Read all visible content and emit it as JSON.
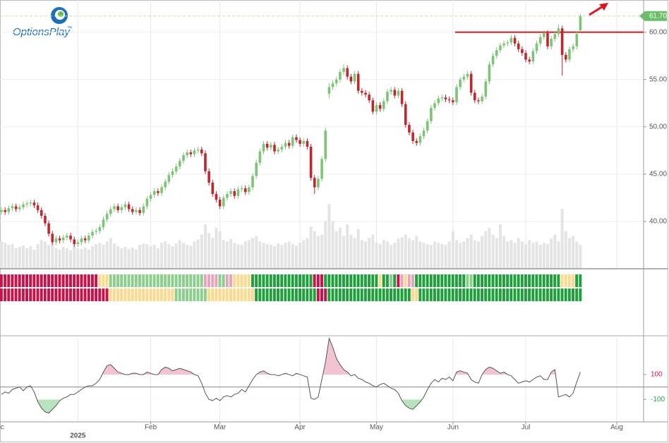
{
  "logo": "OptionsPlay",
  "trademark": "™",
  "chart_data": {
    "type": "candlestick",
    "up_color": "#7cc576",
    "down_color": "#c0272d",
    "volume_color": "#e4e4e4",
    "xlim": [
      -0.39,
      176.36
    ],
    "ylim": [
      35.0,
      63.4
    ],
    "yticks": [
      {
        "value": 40,
        "label": "40.00"
      },
      {
        "value": 45,
        "label": "45.00"
      },
      {
        "value": 50,
        "label": "50.00"
      },
      {
        "value": 55,
        "label": "55.00"
      },
      {
        "value": 60,
        "label": "60.00"
      }
    ],
    "xticks": [
      {
        "value": -1,
        "label": "Dec"
      },
      {
        "value": 41,
        "label": "Feb"
      },
      {
        "value": 60,
        "label": "Mar"
      },
      {
        "value": 82,
        "label": "Apr"
      },
      {
        "value": 103,
        "label": "May"
      },
      {
        "value": 124,
        "label": "Jun"
      },
      {
        "value": 144,
        "label": "Jul"
      },
      {
        "value": 169,
        "label": "Aug"
      }
    ],
    "year_tick": {
      "value": 21,
      "label": "2025"
    },
    "grid": true,
    "last_price": {
      "value": 61.7,
      "label": "61.70",
      "color": "#6abf69"
    },
    "resistance_line": {
      "y": 60,
      "x_start": 124.6,
      "color": "#d9161b"
    },
    "ohlc": [
      [
        41.0,
        41.5,
        40.7,
        41.2
      ],
      [
        41.2,
        41.5,
        40.7,
        41.0
      ],
      [
        41.0,
        41.7,
        40.7,
        41.4
      ],
      [
        41.4,
        41.9,
        41.1,
        41.6
      ],
      [
        41.6,
        41.9,
        41.0,
        41.3
      ],
      [
        41.3,
        41.8,
        41.0,
        41.5
      ],
      [
        41.5,
        42.1,
        41.2,
        41.8
      ],
      [
        41.8,
        42.2,
        41.5,
        41.9
      ],
      [
        41.9,
        42.3,
        41.6,
        42.0
      ],
      [
        42.0,
        42.3,
        41.4,
        41.7
      ],
      [
        41.7,
        42.0,
        40.9,
        41.2
      ],
      [
        41.2,
        41.5,
        40.3,
        40.6
      ],
      [
        40.6,
        40.9,
        39.5,
        39.8
      ],
      [
        39.8,
        40.1,
        38.4,
        38.7
      ],
      [
        38.7,
        39.0,
        37.5,
        37.8
      ],
      [
        37.8,
        38.5,
        37.5,
        38.2
      ],
      [
        38.2,
        38.5,
        37.7,
        38.0
      ],
      [
        38.0,
        38.6,
        37.7,
        38.3
      ],
      [
        38.3,
        38.8,
        38.0,
        38.5
      ],
      [
        38.5,
        38.8,
        37.8,
        38.1
      ],
      [
        38.1,
        38.4,
        37.3,
        37.6
      ],
      [
        37.6,
        38.1,
        37.3,
        37.8
      ],
      [
        37.8,
        38.5,
        37.5,
        38.2
      ],
      [
        38.2,
        38.5,
        37.7,
        38.0
      ],
      [
        38.0,
        38.8,
        37.7,
        38.5
      ],
      [
        38.5,
        39.2,
        38.2,
        38.9
      ],
      [
        38.9,
        39.3,
        38.6,
        39.0
      ],
      [
        39.0,
        39.7,
        38.7,
        39.4
      ],
      [
        39.4,
        40.5,
        39.1,
        40.2
      ],
      [
        40.2,
        41.1,
        39.9,
        40.8
      ],
      [
        40.8,
        41.6,
        40.5,
        41.3
      ],
      [
        41.3,
        41.9,
        41.0,
        41.6
      ],
      [
        41.6,
        41.9,
        40.9,
        41.2
      ],
      [
        41.2,
        41.8,
        40.9,
        41.5
      ],
      [
        41.5,
        42.1,
        41.2,
        41.8
      ],
      [
        41.8,
        42.1,
        41.0,
        41.3
      ],
      [
        41.3,
        41.6,
        40.7,
        41.0
      ],
      [
        41.0,
        41.5,
        40.7,
        41.2
      ],
      [
        41.2,
        41.5,
        40.6,
        40.9
      ],
      [
        40.9,
        41.9,
        40.6,
        41.6
      ],
      [
        41.6,
        42.7,
        41.3,
        42.4
      ],
      [
        42.4,
        43.1,
        42.1,
        42.8
      ],
      [
        42.8,
        43.5,
        42.5,
        43.2
      ],
      [
        43.2,
        43.5,
        42.7,
        43.0
      ],
      [
        43.0,
        43.9,
        42.7,
        43.6
      ],
      [
        43.6,
        44.5,
        43.3,
        44.2
      ],
      [
        44.2,
        45.2,
        43.9,
        44.9
      ],
      [
        44.9,
        45.6,
        44.6,
        45.3
      ],
      [
        45.3,
        46.1,
        45.0,
        45.8
      ],
      [
        45.8,
        46.7,
        45.5,
        46.4
      ],
      [
        46.4,
        47.3,
        46.1,
        47.0
      ],
      [
        47.0,
        47.6,
        46.7,
        47.3
      ],
      [
        47.3,
        47.6,
        46.8,
        47.1
      ],
      [
        47.1,
        47.8,
        46.8,
        47.5
      ],
      [
        47.5,
        47.9,
        47.2,
        47.6
      ],
      [
        47.6,
        47.9,
        46.9,
        47.2
      ],
      [
        47.2,
        47.5,
        45.0,
        45.3
      ],
      [
        45.3,
        45.6,
        43.8,
        44.1
      ],
      [
        44.1,
        44.4,
        42.6,
        42.9
      ],
      [
        42.9,
        43.2,
        42.0,
        42.3
      ],
      [
        42.3,
        42.6,
        41.3,
        41.6
      ],
      [
        41.6,
        42.8,
        41.3,
        42.5
      ],
      [
        42.5,
        43.2,
        42.2,
        42.9
      ],
      [
        42.9,
        43.5,
        42.6,
        43.2
      ],
      [
        43.2,
        43.5,
        42.4,
        42.7
      ],
      [
        42.7,
        43.7,
        42.4,
        43.4
      ],
      [
        43.4,
        43.8,
        43.1,
        43.5
      ],
      [
        43.5,
        43.8,
        42.8,
        43.1
      ],
      [
        43.1,
        43.9,
        42.8,
        43.6
      ],
      [
        43.6,
        45.1,
        43.3,
        44.8
      ],
      [
        44.8,
        46.5,
        44.5,
        46.2
      ],
      [
        46.2,
        47.7,
        45.9,
        47.4
      ],
      [
        47.4,
        48.5,
        47.1,
        48.2
      ],
      [
        48.2,
        48.5,
        47.5,
        47.8
      ],
      [
        47.8,
        48.4,
        47.5,
        48.1
      ],
      [
        48.1,
        48.4,
        47.1,
        47.4
      ],
      [
        47.4,
        47.9,
        47.1,
        47.6
      ],
      [
        47.6,
        48.2,
        47.3,
        47.9
      ],
      [
        47.9,
        48.6,
        47.6,
        48.3
      ],
      [
        48.3,
        48.6,
        47.7,
        48.0
      ],
      [
        48.0,
        49.2,
        47.7,
        48.9
      ],
      [
        48.9,
        49.2,
        48.3,
        48.6
      ],
      [
        48.6,
        48.9,
        47.9,
        48.2
      ],
      [
        48.2,
        48.8,
        47.9,
        48.5
      ],
      [
        48.5,
        48.8,
        47.6,
        47.9
      ],
      [
        47.9,
        48.2,
        44.3,
        44.6
      ],
      [
        44.6,
        44.9,
        42.9,
        43.6
      ],
      [
        43.6,
        44.8,
        43.3,
        44.5
      ],
      [
        44.5,
        46.9,
        44.2,
        46.6
      ],
      [
        46.6,
        49.9,
        46.3,
        49.6
      ],
      [
        53.5,
        54.6,
        53.0,
        54.2
      ],
      [
        54.2,
        54.9,
        53.9,
        54.6
      ],
      [
        54.6,
        55.3,
        54.3,
        55.0
      ],
      [
        55.0,
        56.1,
        54.7,
        55.8
      ],
      [
        55.8,
        56.6,
        55.5,
        56.2
      ],
      [
        56.2,
        56.5,
        55.0,
        55.3
      ],
      [
        55.3,
        55.6,
        54.5,
        54.8
      ],
      [
        54.8,
        55.9,
        54.5,
        55.6
      ],
      [
        55.6,
        55.9,
        53.5,
        53.8
      ],
      [
        53.8,
        54.1,
        53.3,
        53.6
      ],
      [
        53.6,
        53.9,
        53.1,
        53.4
      ],
      [
        53.4,
        53.7,
        52.5,
        52.8
      ],
      [
        52.8,
        53.1,
        51.3,
        51.6
      ],
      [
        51.6,
        52.6,
        51.3,
        52.3
      ],
      [
        52.3,
        52.6,
        51.6,
        51.9
      ],
      [
        51.9,
        53.0,
        51.6,
        52.7
      ],
      [
        52.7,
        54.0,
        52.4,
        53.7
      ],
      [
        53.7,
        54.2,
        53.4,
        53.9
      ],
      [
        53.9,
        54.2,
        53.0,
        53.3
      ],
      [
        53.3,
        54.1,
        53.0,
        53.8
      ],
      [
        53.8,
        54.1,
        52.1,
        52.4
      ],
      [
        52.4,
        52.7,
        49.9,
        50.2
      ],
      [
        50.2,
        50.5,
        49.1,
        49.4
      ],
      [
        49.4,
        49.7,
        48.2,
        48.5
      ],
      [
        48.5,
        48.8,
        48.0,
        48.3
      ],
      [
        48.3,
        49.3,
        48.0,
        49.0
      ],
      [
        49.0,
        49.9,
        48.7,
        49.6
      ],
      [
        49.6,
        50.9,
        49.3,
        50.6
      ],
      [
        50.6,
        52.3,
        50.3,
        52.0
      ],
      [
        52.0,
        52.8,
        51.7,
        52.5
      ],
      [
        52.5,
        53.3,
        52.2,
        53.0
      ],
      [
        53.0,
        53.4,
        52.7,
        53.1
      ],
      [
        53.1,
        53.4,
        52.6,
        52.9
      ],
      [
        52.9,
        53.2,
        52.5,
        52.8
      ],
      [
        52.8,
        53.1,
        52.3,
        52.6
      ],
      [
        52.6,
        54.5,
        52.3,
        54.2
      ],
      [
        54.2,
        55.3,
        53.9,
        55.0
      ],
      [
        55.0,
        55.6,
        54.7,
        55.3
      ],
      [
        55.3,
        55.9,
        55.0,
        55.6
      ],
      [
        55.6,
        55.9,
        53.3,
        53.6
      ],
      [
        53.6,
        53.9,
        52.5,
        52.8
      ],
      [
        52.8,
        53.1,
        52.4,
        52.7
      ],
      [
        52.7,
        53.5,
        52.4,
        53.2
      ],
      [
        53.2,
        55.1,
        52.9,
        54.8
      ],
      [
        54.8,
        56.9,
        54.5,
        56.6
      ],
      [
        56.6,
        57.8,
        56.3,
        57.5
      ],
      [
        57.5,
        58.4,
        57.2,
        58.1
      ],
      [
        58.1,
        58.9,
        57.8,
        58.6
      ],
      [
        58.6,
        59.1,
        58.3,
        58.8
      ],
      [
        58.8,
        59.2,
        58.5,
        58.9
      ],
      [
        58.9,
        59.7,
        58.6,
        59.4
      ],
      [
        59.4,
        59.7,
        58.5,
        58.8
      ],
      [
        58.8,
        59.1,
        57.9,
        58.2
      ],
      [
        58.2,
        58.5,
        57.5,
        57.8
      ],
      [
        57.8,
        58.1,
        56.8,
        57.1
      ],
      [
        57.1,
        57.4,
        56.6,
        56.9
      ],
      [
        56.9,
        58.3,
        56.6,
        58.0
      ],
      [
        58.0,
        59.1,
        57.7,
        58.8
      ],
      [
        58.8,
        59.8,
        58.5,
        59.5
      ],
      [
        59.5,
        60.2,
        59.2,
        59.9
      ],
      [
        59.9,
        60.2,
        58.2,
        58.5
      ],
      [
        58.5,
        59.6,
        58.2,
        59.3
      ],
      [
        59.3,
        60.1,
        59.0,
        59.8
      ],
      [
        59.8,
        60.8,
        59.5,
        60.4
      ],
      [
        60.4,
        60.7,
        55.4,
        57.6
      ],
      [
        57.6,
        57.9,
        56.8,
        57.1
      ],
      [
        57.1,
        58.5,
        56.8,
        58.2
      ],
      [
        58.2,
        58.8,
        57.9,
        58.5
      ],
      [
        58.5,
        60.1,
        58.2,
        59.8
      ],
      [
        60.2,
        61.9,
        60.0,
        61.7
      ]
    ],
    "volume": [
      40,
      38,
      35,
      36,
      30,
      32,
      34,
      30,
      33,
      28,
      36,
      42,
      40,
      35,
      38,
      30,
      28,
      32,
      30,
      27,
      34,
      30,
      29,
      31,
      28,
      33,
      36,
      38,
      35,
      40,
      45,
      37,
      33,
      30,
      32,
      29,
      31,
      28,
      35,
      37,
      36,
      33,
      35,
      30,
      38,
      40,
      36,
      33,
      37,
      42,
      38,
      35,
      34,
      40,
      43,
      50,
      65,
      52,
      45,
      60,
      55,
      42,
      40,
      44,
      38,
      36,
      35,
      40,
      42,
      45,
      48,
      40,
      38,
      36,
      35,
      33,
      37,
      35,
      38,
      40,
      36,
      34,
      38,
      42,
      45,
      62,
      55,
      48,
      50,
      70,
      95,
      70,
      55,
      60,
      48,
      65,
      50,
      45,
      58,
      42,
      40,
      45,
      50,
      38,
      36,
      42,
      40,
      35,
      38,
      44,
      46,
      50,
      45,
      42,
      48,
      40,
      38,
      36,
      35,
      40,
      38,
      36,
      35,
      40,
      55,
      42,
      38,
      40,
      45,
      50,
      42,
      40,
      48,
      55,
      60,
      50,
      45,
      65,
      48,
      40,
      42,
      38,
      45,
      40,
      36,
      42,
      38,
      40,
      35,
      38,
      36,
      44,
      50,
      40,
      88,
      55,
      45,
      48,
      40,
      35
    ],
    "signals": [
      {
        "runs": [
          {
            "color": "#c8134a",
            "count": 27
          },
          {
            "color": "#fcd98c",
            "count": 3
          },
          {
            "color": "#8ccf8c",
            "count": 26
          },
          {
            "color": "#e9a3bb",
            "count": 4
          },
          {
            "color": "#8ccf8c",
            "count": 2
          },
          {
            "color": "#e9a3bb",
            "count": 2
          },
          {
            "color": "#fcd98c",
            "count": 5
          },
          {
            "color": "#1ea13a",
            "count": 17
          },
          {
            "color": "#c8134a",
            "count": 3
          },
          {
            "color": "#1ea13a",
            "count": 15
          },
          {
            "color": "#fcd98c",
            "count": 1
          },
          {
            "color": "#1ea13a",
            "count": 2
          },
          {
            "color": "#8ccf8c",
            "count": 1
          },
          {
            "color": "#1ea13a",
            "count": 1
          },
          {
            "color": "#c8134a",
            "count": 1
          },
          {
            "color": "#e9a3bb",
            "count": 1
          },
          {
            "color": "#fcd98c",
            "count": 1
          },
          {
            "color": "#e9a3bb",
            "count": 2
          },
          {
            "color": "#1ea13a",
            "count": 14
          },
          {
            "color": "#8ccf8c",
            "count": 2
          },
          {
            "color": "#1ea13a",
            "count": 24
          },
          {
            "color": "#fcd98c",
            "count": 4
          },
          {
            "color": "#1ea13a",
            "count": 2
          }
        ]
      },
      {
        "runs": [
          {
            "color": "#c8134a",
            "count": 30
          },
          {
            "color": "#fcd98c",
            "count": 18
          },
          {
            "color": "#8ccf8c",
            "count": 9
          },
          {
            "color": "#fcd98c",
            "count": 13
          },
          {
            "color": "#1ea13a",
            "count": 17
          },
          {
            "color": "#c8134a",
            "count": 3
          },
          {
            "color": "#1ea13a",
            "count": 23
          },
          {
            "color": "#fcd98c",
            "count": 2
          },
          {
            "color": "#1ea13a",
            "count": 45
          }
        ]
      }
    ],
    "indicator": {
      "type": "line",
      "color": "#555555",
      "ylim": [
        -280,
        400
      ],
      "yticks": [
        100,
        -100
      ],
      "ytick_colors": [
        "#c2185b",
        "#2e9e4a"
      ],
      "reference_line": 0,
      "overbought_fill": "#f2c4cf",
      "oversold_fill": "#b9e3bf",
      "values": [
        -60,
        -40,
        -50,
        -20,
        -10,
        0,
        -30,
        0,
        10,
        -40,
        -120,
        -170,
        -200,
        -210,
        -180,
        -150,
        -110,
        -90,
        -80,
        -60,
        -60,
        -40,
        -20,
        0,
        10,
        10,
        30,
        60,
        120,
        170,
        180,
        150,
        120,
        110,
        100,
        100,
        110,
        110,
        100,
        100,
        120,
        110,
        100,
        100,
        140,
        160,
        150,
        130,
        140,
        150,
        140,
        130,
        120,
        100,
        90,
        30,
        -50,
        -100,
        -110,
        -90,
        -110,
        -80,
        -70,
        -80,
        -60,
        -50,
        -20,
        -40,
        10,
        60,
        100,
        120,
        130,
        110,
        100,
        100,
        90,
        100,
        110,
        100,
        90,
        110,
        100,
        90,
        80,
        -90,
        -100,
        -80,
        60,
        200,
        390,
        320,
        230,
        180,
        140,
        120,
        90,
        100,
        70,
        60,
        40,
        30,
        10,
        0,
        20,
        30,
        10,
        -10,
        -20,
        -50,
        -110,
        -150,
        -170,
        -180,
        -150,
        -120,
        -80,
        -20,
        30,
        60,
        40,
        70,
        60,
        80,
        50,
        120,
        130,
        120,
        110,
        60,
        40,
        30,
        100,
        140,
        160,
        150,
        130,
        110,
        120,
        100,
        90,
        60,
        30,
        40,
        50,
        40,
        60,
        80,
        90,
        60,
        60,
        120,
        140,
        -80,
        -70,
        -60,
        -80,
        -50,
        40,
        120
      ]
    }
  }
}
